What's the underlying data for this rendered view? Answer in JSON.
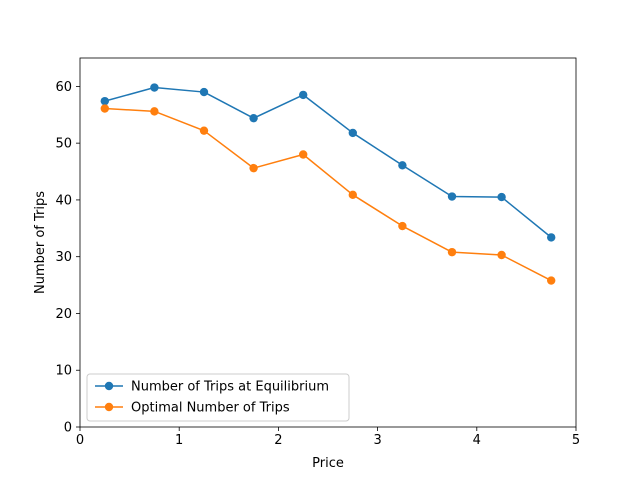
{
  "chart_data": {
    "type": "line",
    "xlabel": "Price",
    "ylabel": "Number of Trips",
    "xlim": [
      0,
      5
    ],
    "ylim": [
      0,
      65
    ],
    "xticks": [
      "0",
      "1",
      "2",
      "3",
      "4",
      "5"
    ],
    "yticks": [
      "0",
      "10",
      "20",
      "30",
      "40",
      "50",
      "60"
    ],
    "x": [
      0.25,
      0.75,
      1.25,
      1.75,
      2.25,
      2.75,
      3.25,
      3.75,
      4.25,
      4.75
    ],
    "series": [
      {
        "name": "Number of Trips at Equilibrium",
        "color": "#1f77b4",
        "values": [
          57.4,
          59.8,
          59.0,
          54.4,
          58.5,
          51.8,
          46.1,
          40.6,
          40.5,
          33.4
        ]
      },
      {
        "name": "Optimal Number of Trips",
        "color": "#ff7f0e",
        "values": [
          56.1,
          55.6,
          52.2,
          45.6,
          48.0,
          40.9,
          35.4,
          30.8,
          30.3,
          25.8
        ]
      }
    ],
    "grid": false,
    "legend_position": "lower-left"
  }
}
